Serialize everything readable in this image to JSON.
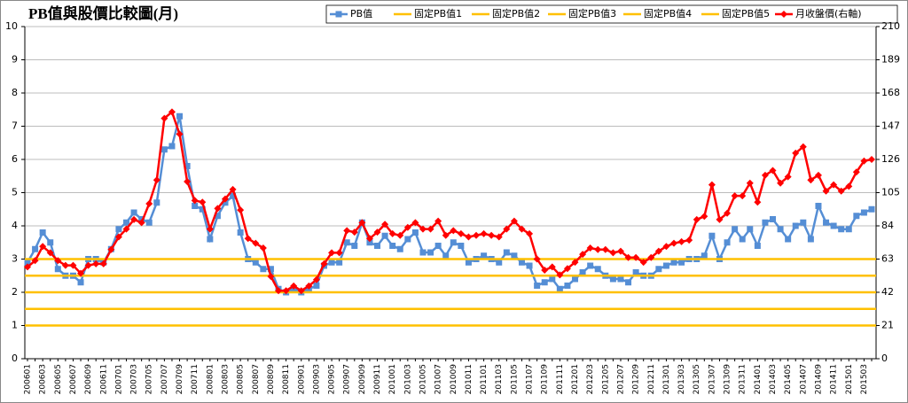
{
  "chart_data": {
    "type": "line",
    "title": "PB值與股價比較圖(月)",
    "categories": [
      "200601",
      null,
      "200603",
      null,
      "200605",
      null,
      "200607",
      null,
      "200609",
      null,
      "200611",
      null,
      "200701",
      null,
      "200703",
      null,
      "200705",
      null,
      "200707",
      null,
      "200709",
      null,
      "200711",
      null,
      "200801",
      null,
      "200803",
      null,
      "200805",
      null,
      "200807",
      null,
      "200809",
      null,
      "200811",
      null,
      "200901",
      null,
      "200903",
      null,
      "200905",
      null,
      "200907",
      null,
      "200909",
      null,
      "200911",
      null,
      "201001",
      null,
      "201003",
      null,
      "201005",
      null,
      "201007",
      null,
      "201009",
      null,
      "201011",
      null,
      "201101",
      null,
      "201103",
      null,
      "201105",
      null,
      "201107",
      null,
      "201109",
      null,
      "201111",
      null,
      "201201",
      null,
      "201203",
      null,
      "201205",
      null,
      "201207",
      null,
      "201209",
      null,
      "201211",
      null,
      "201301",
      null,
      "201303",
      null,
      "201305",
      null,
      "201307",
      null,
      "201309",
      null,
      "201311",
      null,
      "201401",
      null,
      "201403",
      null,
      "201405",
      null,
      "201407",
      null,
      "201409",
      null,
      "201411",
      null,
      "201501",
      null,
      "201503",
      null
    ],
    "series": [
      {
        "name": "PB值",
        "color": "#558ed5",
        "marker": "square",
        "values": [
          2.9,
          3.3,
          3.8,
          3.5,
          2.7,
          2.5,
          2.5,
          2.3,
          3.0,
          3.0,
          2.9,
          3.3,
          3.9,
          4.1,
          4.4,
          4.2,
          4.1,
          4.7,
          6.3,
          6.4,
          7.3,
          5.8,
          4.6,
          4.5,
          3.6,
          4.3,
          4.7,
          4.9,
          3.8,
          3.0,
          2.9,
          2.7,
          2.7,
          2.1,
          2.0,
          2.1,
          2.0,
          2.1,
          2.2,
          2.8,
          2.9,
          2.9,
          3.5,
          3.4,
          4.1,
          3.5,
          3.4,
          3.7,
          3.4,
          3.3,
          3.6,
          3.8,
          3.2,
          3.2,
          3.4,
          3.1,
          3.5,
          3.4,
          2.9,
          3.0,
          3.1,
          3.0,
          2.9,
          3.2,
          3.1,
          2.9,
          2.8,
          2.2,
          2.3,
          2.4,
          2.1,
          2.2,
          2.4,
          2.6,
          2.8,
          2.7,
          2.5,
          2.4,
          2.4,
          2.3,
          2.6,
          2.5,
          2.5,
          2.7,
          2.8,
          2.9,
          2.9,
          3.0,
          3.0,
          3.1,
          3.7,
          3.0,
          3.5,
          3.9,
          3.6,
          3.9,
          3.4,
          4.1,
          4.2,
          3.9,
          3.6,
          4.0,
          4.1,
          3.6,
          4.6,
          4.1,
          4.0,
          3.9,
          3.9,
          4.3,
          4.4,
          4.5
        ]
      },
      {
        "name": "固定PB值1",
        "color": "#ffc000",
        "value": 1
      },
      {
        "name": "固定PB值2",
        "color": "#ffc000",
        "value": 1.5
      },
      {
        "name": "固定PB值3",
        "color": "#ffc000",
        "value": 2
      },
      {
        "name": "固定PB值4",
        "color": "#ffc000",
        "value": 2.5
      },
      {
        "name": "固定PB值5",
        "color": "#ffc000",
        "value": 3
      },
      {
        "name": "月收盤價(右軸)",
        "color": "#ff0000",
        "marker": "diamond",
        "axis": "y2",
        "values": [
          58,
          62,
          71,
          67,
          62,
          59,
          59,
          54,
          59,
          60,
          60,
          69,
          77,
          82,
          88,
          86,
          98,
          113,
          152,
          156,
          142,
          112,
          100,
          99,
          82,
          95,
          101,
          107,
          94,
          76,
          73,
          70,
          52,
          43,
          43,
          46,
          43,
          46,
          50,
          60,
          67,
          67,
          81,
          80,
          86,
          76,
          80,
          85,
          79,
          78,
          83,
          86,
          82,
          82,
          87,
          78,
          81,
          79,
          77,
          78,
          79,
          78,
          77,
          82,
          87,
          82,
          79,
          63,
          56,
          58,
          53,
          57,
          61,
          66,
          70,
          69,
          69,
          67,
          68,
          64,
          64,
          61,
          64,
          68,
          71,
          73,
          74,
          75,
          88,
          90,
          110,
          88,
          92,
          103,
          103,
          111,
          99,
          116,
          119,
          111,
          115,
          130,
          134,
          113,
          116,
          106,
          110,
          106,
          109,
          118,
          125,
          126
        ]
      }
    ],
    "ylim": [
      0,
      10
    ],
    "yticks": [
      0,
      1,
      2,
      3,
      4,
      5,
      6,
      7,
      8,
      9,
      10
    ],
    "y2lim": [
      0,
      210
    ],
    "y2ticks": [
      0,
      21,
      42,
      63,
      84,
      105,
      126,
      147,
      168,
      189,
      210
    ],
    "grid": true,
    "legend": "top-right"
  }
}
